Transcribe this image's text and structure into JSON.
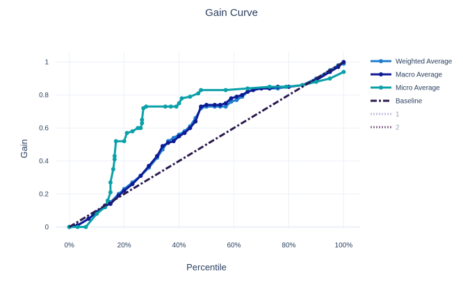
{
  "chart_data": {
    "type": "line",
    "title": "Gain Curve",
    "xlabel": "Percentile",
    "ylabel": "Gain",
    "xlim": [
      -0.05,
      1.06
    ],
    "ylim": [
      -0.01,
      1.06
    ],
    "xticks": [
      0,
      0.2,
      0.4,
      0.6,
      0.8,
      1.0
    ],
    "xtick_labels": [
      "0%",
      "20%",
      "40%",
      "60%",
      "80%",
      "100%"
    ],
    "yticks": [
      0,
      0.2,
      0.4,
      0.6,
      0.8,
      1
    ],
    "ytick_labels": [
      "0",
      "0.2",
      "0.4",
      "0.6",
      "0.8",
      "1"
    ],
    "grid": true,
    "legend_position": "right",
    "series": [
      {
        "name": "Weighted Average",
        "color": "#1f7ccf",
        "style": "solid-markers",
        "x": [
          0.0,
          0.03,
          0.07,
          0.1,
          0.13,
          0.15,
          0.18,
          0.2,
          0.23,
          0.26,
          0.29,
          0.32,
          0.34,
          0.36,
          0.38,
          0.4,
          0.42,
          0.44,
          0.46,
          0.48,
          0.5,
          0.53,
          0.55,
          0.57,
          0.59,
          0.61,
          0.63,
          0.65,
          0.67,
          0.7,
          0.73,
          0.76,
          0.8,
          0.85,
          0.9,
          0.95,
          0.98,
          1.0
        ],
        "y": [
          0.0,
          0.01,
          0.05,
          0.09,
          0.12,
          0.15,
          0.2,
          0.23,
          0.27,
          0.31,
          0.36,
          0.42,
          0.47,
          0.52,
          0.54,
          0.56,
          0.58,
          0.61,
          0.66,
          0.72,
          0.73,
          0.73,
          0.73,
          0.73,
          0.76,
          0.77,
          0.79,
          0.82,
          0.83,
          0.84,
          0.84,
          0.84,
          0.85,
          0.86,
          0.9,
          0.95,
          0.98,
          0.99
        ]
      },
      {
        "name": "Macro Average",
        "color": "#0d1a94",
        "style": "solid-markers",
        "x": [
          0.0,
          0.03,
          0.07,
          0.1,
          0.13,
          0.15,
          0.18,
          0.2,
          0.23,
          0.26,
          0.29,
          0.32,
          0.34,
          0.36,
          0.38,
          0.4,
          0.42,
          0.44,
          0.46,
          0.48,
          0.5,
          0.53,
          0.55,
          0.57,
          0.59,
          0.61,
          0.63,
          0.65,
          0.67,
          0.7,
          0.73,
          0.76,
          0.8,
          0.85,
          0.9,
          0.95,
          0.98,
          1.0
        ],
        "y": [
          0.0,
          0.01,
          0.05,
          0.09,
          0.13,
          0.14,
          0.19,
          0.22,
          0.26,
          0.31,
          0.37,
          0.43,
          0.49,
          0.51,
          0.52,
          0.55,
          0.57,
          0.6,
          0.64,
          0.73,
          0.74,
          0.74,
          0.74,
          0.75,
          0.78,
          0.79,
          0.8,
          0.82,
          0.83,
          0.84,
          0.84,
          0.85,
          0.85,
          0.86,
          0.89,
          0.94,
          0.97,
          1.0
        ]
      },
      {
        "name": "Micro Average",
        "color": "#0aa0a8",
        "style": "solid-markers",
        "x": [
          0.0,
          0.03,
          0.06,
          0.1,
          0.13,
          0.14,
          0.15,
          0.15,
          0.16,
          0.165,
          0.165,
          0.17,
          0.2,
          0.21,
          0.23,
          0.25,
          0.26,
          0.265,
          0.265,
          0.27,
          0.28,
          0.35,
          0.37,
          0.39,
          0.4,
          0.41,
          0.44,
          0.47,
          0.48,
          0.57,
          0.65,
          0.73,
          0.79,
          0.85,
          0.9,
          0.95,
          1.0
        ],
        "y": [
          0.0,
          0.0,
          0.0,
          0.08,
          0.12,
          0.16,
          0.21,
          0.27,
          0.35,
          0.41,
          0.43,
          0.52,
          0.52,
          0.57,
          0.58,
          0.6,
          0.6,
          0.63,
          0.65,
          0.72,
          0.73,
          0.73,
          0.73,
          0.73,
          0.75,
          0.78,
          0.79,
          0.81,
          0.83,
          0.83,
          0.84,
          0.85,
          0.85,
          0.86,
          0.88,
          0.9,
          0.94
        ]
      },
      {
        "name": "Baseline",
        "color": "#2b1a4f",
        "style": "dashdot",
        "x": [
          0,
          1
        ],
        "y": [
          0,
          1
        ]
      },
      {
        "name": "1",
        "color": "#c3bedf",
        "style": "dotted-legend-only",
        "x": [],
        "y": []
      },
      {
        "name": "2",
        "color": "#8e6a8f",
        "style": "dotted-legend-only",
        "x": [],
        "y": []
      }
    ]
  }
}
